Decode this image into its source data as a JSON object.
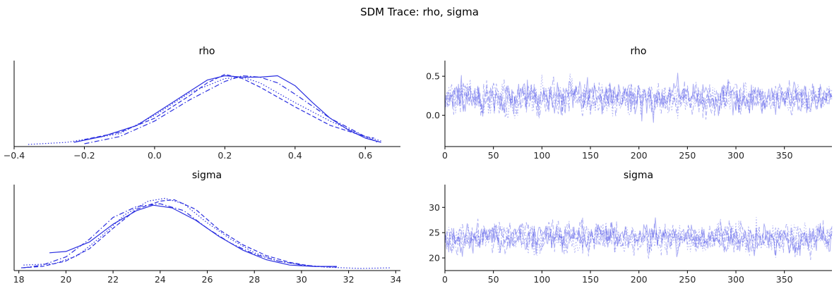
{
  "figure": {
    "title": "SDM Trace: rho, sigma",
    "background": "#ffffff",
    "line_color": "#2a2ee0",
    "trace_color": "#4a4ee6"
  },
  "chart_data": [
    {
      "type": "line",
      "kind": "density",
      "title": "rho",
      "xlabel": "",
      "ylabel": "",
      "xlim": [
        -0.4,
        0.7
      ],
      "ylim": [
        0,
        1
      ],
      "x_ticks": [
        -0.4,
        -0.2,
        0.0,
        0.2,
        0.4,
        0.6
      ],
      "x_tick_labels": [
        "−0.4",
        "−0.2",
        "0.0",
        "0.2",
        "0.4",
        "0.6"
      ],
      "y_ticks": [],
      "grid": false,
      "legend": "none",
      "series": [
        {
          "line_style": "solid",
          "x": [
            -0.23,
            -0.15,
            -0.05,
            0.05,
            0.15,
            0.2,
            0.25,
            0.3,
            0.35,
            0.4,
            0.45,
            0.5,
            0.55,
            0.6,
            0.645
          ],
          "y": [
            0.02,
            0.06,
            0.14,
            0.3,
            0.46,
            0.49,
            0.48,
            0.48,
            0.49,
            0.42,
            0.3,
            0.19,
            0.11,
            0.05,
            0.02
          ]
        },
        {
          "line_style": "dashed",
          "x": [
            -0.2,
            -0.1,
            0.0,
            0.1,
            0.15,
            0.2,
            0.25,
            0.3,
            0.4,
            0.5,
            0.6,
            0.625
          ],
          "y": [
            0.04,
            0.09,
            0.19,
            0.35,
            0.44,
            0.5,
            0.47,
            0.41,
            0.27,
            0.14,
            0.06,
            0.05
          ]
        },
        {
          "line_style": "dashdot",
          "x": [
            -0.2,
            -0.1,
            0.0,
            0.1,
            0.2,
            0.25,
            0.3,
            0.35,
            0.4,
            0.5,
            0.6,
            0.635
          ],
          "y": [
            0.01,
            0.06,
            0.17,
            0.32,
            0.45,
            0.49,
            0.48,
            0.44,
            0.36,
            0.19,
            0.06,
            0.02
          ]
        },
        {
          "line_style": "dotted",
          "x": [
            -0.36,
            -0.25,
            -0.1,
            0.0,
            0.1,
            0.2,
            0.25,
            0.3,
            0.4,
            0.5,
            0.6,
            0.645
          ],
          "y": [
            0.005,
            0.02,
            0.08,
            0.21,
            0.37,
            0.47,
            0.48,
            0.44,
            0.3,
            0.17,
            0.06,
            0.03
          ]
        }
      ]
    },
    {
      "type": "line",
      "kind": "trace",
      "title": "rho",
      "xlabel": "",
      "ylabel": "",
      "xlim": [
        0,
        399
      ],
      "ylim": [
        -0.4,
        0.7
      ],
      "x_ticks": [
        0,
        50,
        100,
        150,
        200,
        250,
        300,
        350
      ],
      "x_tick_labels": [
        "0",
        "50",
        "100",
        "150",
        "200",
        "250",
        "300",
        "350"
      ],
      "y_ticks": [
        0.0,
        0.5
      ],
      "y_tick_labels": [
        "0.0",
        "0.5"
      ],
      "grid": false,
      "legend": "none",
      "draws": 400,
      "chains": 4,
      "summary": {
        "center": 0.22,
        "spread": 0.14,
        "min": -0.36,
        "max": 0.64
      },
      "series": [
        {
          "line_style": "solid",
          "opacity": 0.45
        },
        {
          "line_style": "dashed",
          "opacity": 0.45
        },
        {
          "line_style": "dashdot",
          "opacity": 0.45
        },
        {
          "line_style": "dotted",
          "opacity": 0.45
        }
      ]
    },
    {
      "type": "line",
      "kind": "density",
      "title": "sigma",
      "xlabel": "",
      "ylabel": "",
      "xlim": [
        17.8,
        34.2
      ],
      "ylim": [
        0,
        1
      ],
      "x_ticks": [
        18,
        20,
        22,
        24,
        26,
        28,
        30,
        32,
        34
      ],
      "x_tick_labels": [
        "18",
        "20",
        "22",
        "24",
        "26",
        "28",
        "30",
        "32",
        "34"
      ],
      "y_ticks": [],
      "grid": false,
      "legend": "none",
      "series": [
        {
          "line_style": "solid",
          "x": [
            19.3,
            20.0,
            21.0,
            22.0,
            23.0,
            23.7,
            24.5,
            25.5,
            26.5,
            27.5,
            28.5,
            29.5,
            30.5,
            31.5
          ],
          "y": [
            0.12,
            0.13,
            0.2,
            0.33,
            0.43,
            0.47,
            0.45,
            0.36,
            0.24,
            0.14,
            0.07,
            0.03,
            0.02,
            0.02
          ]
        },
        {
          "line_style": "dashed",
          "x": [
            18.1,
            19.0,
            20.0,
            21.0,
            22.0,
            23.0,
            24.0,
            24.6,
            25.5,
            26.5,
            27.5,
            28.5,
            29.5,
            30.5,
            31.5
          ],
          "y": [
            0.01,
            0.02,
            0.06,
            0.15,
            0.3,
            0.44,
            0.5,
            0.51,
            0.44,
            0.29,
            0.18,
            0.1,
            0.05,
            0.02,
            0.015
          ]
        },
        {
          "line_style": "dashdot",
          "x": [
            18.2,
            19.0,
            20.0,
            21.0,
            22.0,
            23.0,
            24.0,
            25.0,
            26.0,
            27.0,
            28.0,
            29.0,
            30.0,
            30.8
          ],
          "y": [
            0.01,
            0.03,
            0.09,
            0.22,
            0.38,
            0.46,
            0.48,
            0.43,
            0.3,
            0.19,
            0.11,
            0.06,
            0.03,
            0.02
          ]
        },
        {
          "line_style": "dotted",
          "x": [
            18.2,
            19.5,
            20.5,
            21.5,
            22.5,
            23.5,
            24.2,
            25.0,
            26.0,
            27.0,
            28.0,
            29.0,
            30.0,
            31.0,
            32.5,
            33.8
          ],
          "y": [
            0.03,
            0.04,
            0.1,
            0.24,
            0.4,
            0.5,
            0.52,
            0.48,
            0.34,
            0.22,
            0.12,
            0.06,
            0.03,
            0.015,
            0.005,
            0.01
          ]
        }
      ]
    },
    {
      "type": "line",
      "kind": "trace",
      "title": "sigma",
      "xlabel": "",
      "ylabel": "",
      "xlim": [
        0,
        399
      ],
      "ylim": [
        17.5,
        34.5
      ],
      "x_ticks": [
        0,
        50,
        100,
        150,
        200,
        250,
        300,
        350
      ],
      "x_tick_labels": [
        "0",
        "50",
        "100",
        "150",
        "200",
        "250",
        "300",
        "350"
      ],
      "y_ticks": [
        20,
        25,
        30
      ],
      "y_tick_labels": [
        "20",
        "25",
        "30"
      ],
      "grid": false,
      "legend": "none",
      "draws": 400,
      "chains": 4,
      "summary": {
        "center": 24.0,
        "spread": 2.0,
        "min": 18.2,
        "max": 33.8
      },
      "series": [
        {
          "line_style": "solid",
          "opacity": 0.45
        },
        {
          "line_style": "dashed",
          "opacity": 0.45
        },
        {
          "line_style": "dashdot",
          "opacity": 0.45
        },
        {
          "line_style": "dotted",
          "opacity": 0.45
        }
      ]
    }
  ]
}
